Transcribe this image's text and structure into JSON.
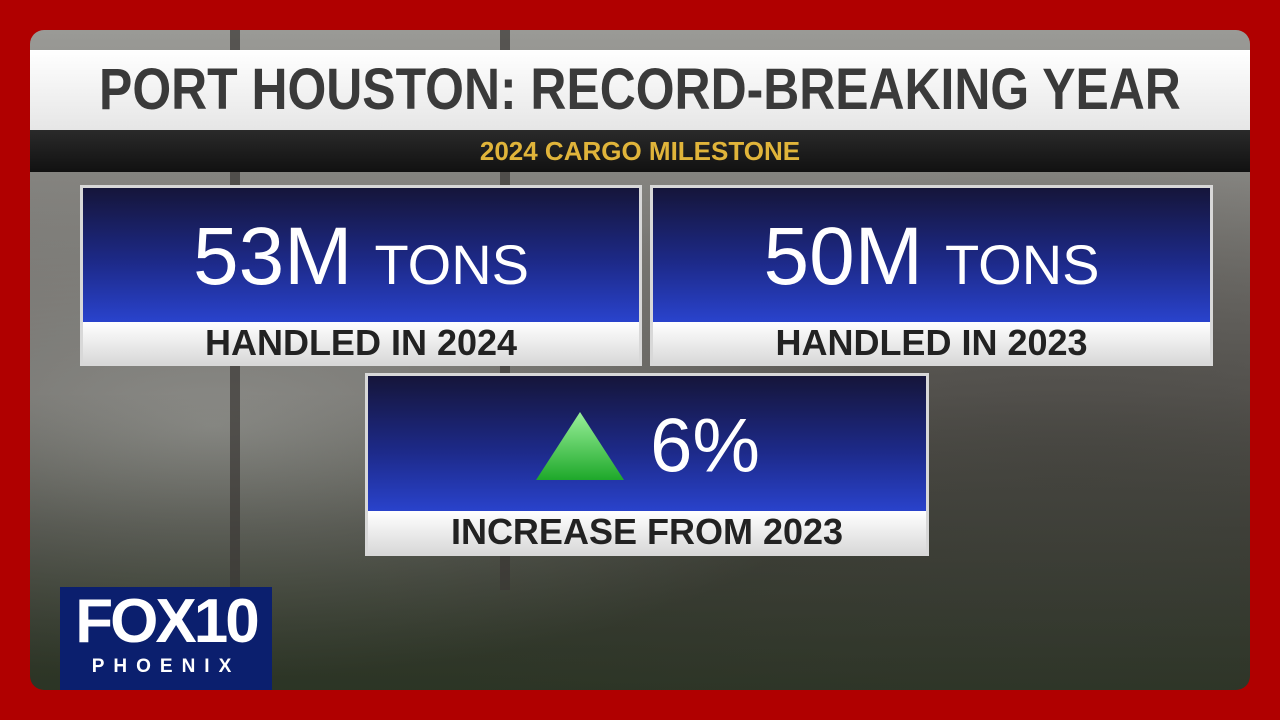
{
  "header": {
    "title": "PORT HOUSTON: RECORD-BREAKING YEAR",
    "subtitle": "2024 CARGO MILESTONE"
  },
  "cards": [
    {
      "value": "53M",
      "unit": "TONS",
      "label": "HANDLED IN 2024"
    },
    {
      "value": "50M",
      "unit": "TONS",
      "label": "HANDLED IN 2023"
    },
    {
      "value": "6%",
      "label": "INCREASE FROM 2023"
    }
  ],
  "logo": {
    "brand": "FOX",
    "number": "10",
    "city": "PHOENIX"
  }
}
